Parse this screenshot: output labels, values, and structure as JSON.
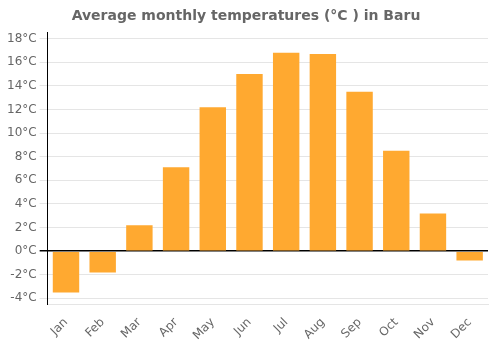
{
  "chart_data": {
    "type": "bar",
    "title": "Average monthly temperatures (°C ) in Baru",
    "categories": [
      "Jan",
      "Feb",
      "Mar",
      "Apr",
      "May",
      "Jun",
      "Jul",
      "Aug",
      "Sep",
      "Oct",
      "Nov",
      "Dec"
    ],
    "values": [
      -3.5,
      -1.8,
      2.2,
      7.1,
      12.2,
      15.0,
      16.8,
      16.7,
      13.5,
      8.5,
      3.2,
      -0.8
    ],
    "color": "#FFA930",
    "ylim": [
      -4.5,
      18.5
    ],
    "yticks": [
      {
        "value": -4,
        "label": "-4°C"
      },
      {
        "value": -2,
        "label": "-2°C"
      },
      {
        "value": 0,
        "label": "0°C"
      },
      {
        "value": 2,
        "label": "2°C"
      },
      {
        "value": 4,
        "label": "4°C"
      },
      {
        "value": 6,
        "label": "6°C"
      },
      {
        "value": 8,
        "label": "8°C"
      },
      {
        "value": 10,
        "label": "10°C"
      },
      {
        "value": 12,
        "label": "12°C"
      },
      {
        "value": 14,
        "label": "14°C"
      },
      {
        "value": 16,
        "label": "16°C"
      },
      {
        "value": 18,
        "label": "18°C"
      }
    ],
    "grid": true
  }
}
